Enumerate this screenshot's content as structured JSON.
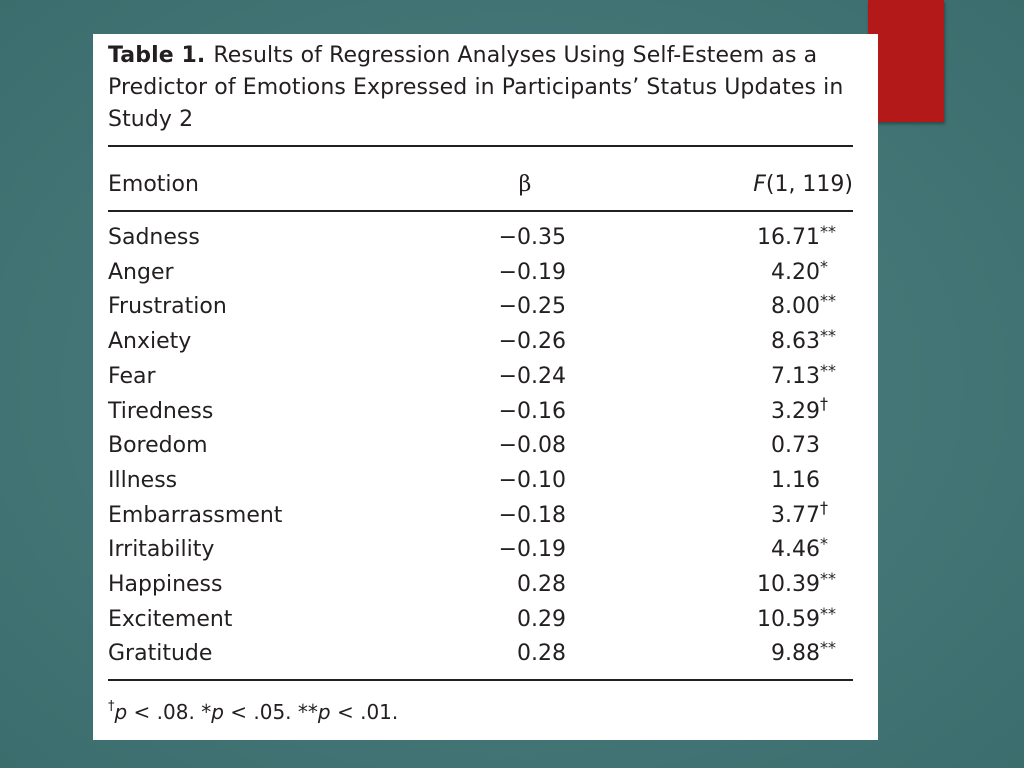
{
  "table": {
    "label": "Table 1.",
    "title": "Results of Regression Analyses Using Self-Esteem as a Predictor of Emotions Expressed in Participants’ Status Updates in Study 2",
    "columns": {
      "emotion": "Emotion",
      "beta": "β",
      "f_stat_italic": "F",
      "f_stat_rest": "(1, 119)"
    },
    "rows": [
      {
        "emotion": "Sadness",
        "beta": "−0.35",
        "f": "16.71",
        "sig": "**"
      },
      {
        "emotion": "Anger",
        "beta": "−0.19",
        "f": "4.20",
        "sig": "*"
      },
      {
        "emotion": "Frustration",
        "beta": "−0.25",
        "f": "8.00",
        "sig": "**"
      },
      {
        "emotion": "Anxiety",
        "beta": "−0.26",
        "f": "8.63",
        "sig": "**"
      },
      {
        "emotion": "Fear",
        "beta": "−0.24",
        "f": "7.13",
        "sig": "**"
      },
      {
        "emotion": "Tiredness",
        "beta": "−0.16",
        "f": "3.29",
        "sig": "†"
      },
      {
        "emotion": "Boredom",
        "beta": "−0.08",
        "f": "0.73",
        "sig": ""
      },
      {
        "emotion": "Illness",
        "beta": "−0.10",
        "f": "1.16",
        "sig": ""
      },
      {
        "emotion": "Embarrassment",
        "beta": "−0.18",
        "f": "3.77",
        "sig": "†"
      },
      {
        "emotion": "Irritability",
        "beta": "−0.19",
        "f": "4.46",
        "sig": "*"
      },
      {
        "emotion": "Happiness",
        "beta": "0.28",
        "f": "10.39",
        "sig": "**"
      },
      {
        "emotion": "Excitement",
        "beta": "0.29",
        "f": "10.59",
        "sig": "**"
      },
      {
        "emotion": "Gratitude",
        "beta": "0.28",
        "f": "9.88",
        "sig": "**"
      }
    ],
    "note": {
      "dagger": "†",
      "p1": "p",
      "t1": " < .08. *",
      "p2": "p",
      "t2": " < .05. **",
      "p3": "p",
      "t3": " < .01."
    }
  },
  "colors": {
    "background": "#437576",
    "accent": "#b4191a",
    "card": "#ffffff",
    "text": "#231f20"
  }
}
